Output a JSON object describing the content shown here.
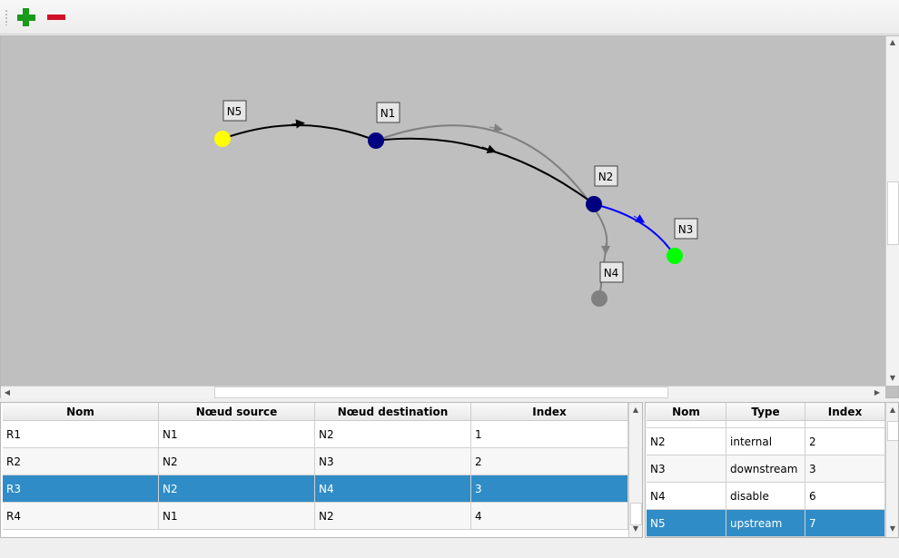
{
  "toolbar": {
    "add": "plus-icon",
    "remove": "minus-icon",
    "add_color": "#1a9a1a",
    "remove_color": "#d0102a"
  },
  "graph": {
    "nodes": [
      {
        "label": "N5",
        "color": "#ffff00"
      },
      {
        "label": "N1",
        "color": "#000080"
      },
      {
        "label": "N2",
        "color": "#000080"
      },
      {
        "label": "N3",
        "color": "#00ff00"
      },
      {
        "label": "N4",
        "color": "#808080"
      }
    ],
    "edge_colors": {
      "normal": "#000000",
      "disabled": "#808080",
      "selected": "#0000ff"
    }
  },
  "routes": {
    "headers": [
      "Nom",
      "Nœud source",
      "Nœud destination",
      "Index"
    ],
    "rows": [
      [
        "R1",
        "N1",
        "N2",
        "1"
      ],
      [
        "R2",
        "N2",
        "N3",
        "2"
      ],
      [
        "R3",
        "N2",
        "N4",
        "3"
      ],
      [
        "R4",
        "N1",
        "N2",
        "4"
      ]
    ],
    "selected": 2
  },
  "nodes_table": {
    "headers": [
      "Nom",
      "Type",
      "Index"
    ],
    "rows": [
      [
        "N2",
        "internal",
        "2"
      ],
      [
        "N3",
        "downstream",
        "3"
      ],
      [
        "N4",
        "disable",
        "6"
      ],
      [
        "N5",
        "upstream",
        "7"
      ]
    ],
    "selected": 3
  }
}
